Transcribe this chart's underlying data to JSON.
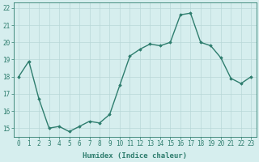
{
  "x": [
    0,
    1,
    2,
    3,
    4,
    5,
    6,
    7,
    8,
    9,
    10,
    11,
    12,
    13,
    14,
    15,
    16,
    17,
    18,
    19,
    20,
    21,
    22,
    23
  ],
  "y": [
    18.0,
    18.9,
    16.7,
    15.0,
    15.1,
    14.8,
    15.1,
    15.4,
    15.3,
    15.8,
    17.5,
    19.2,
    19.6,
    19.9,
    19.8,
    20.0,
    21.6,
    21.7,
    20.0,
    19.8,
    19.1,
    17.9,
    17.6,
    18.0
  ],
  "line_color": "#2e7d6e",
  "marker": "D",
  "markersize": 1.8,
  "linewidth": 1.0,
  "bg_color": "#d6eeee",
  "grid_color": "#b8d8d8",
  "tick_color": "#2e7d6e",
  "xlabel": "Humidex (Indice chaleur)",
  "xlabel_fontsize": 6.5,
  "tick_fontsize": 5.5,
  "ylim": [
    14.5,
    22.3
  ],
  "yticks": [
    15,
    16,
    17,
    18,
    19,
    20,
    21,
    22
  ],
  "xticks": [
    0,
    1,
    2,
    3,
    4,
    5,
    6,
    7,
    8,
    9,
    10,
    11,
    12,
    13,
    14,
    15,
    16,
    17,
    18,
    19,
    20,
    21,
    22,
    23
  ],
  "xlim": [
    -0.5,
    23.5
  ]
}
